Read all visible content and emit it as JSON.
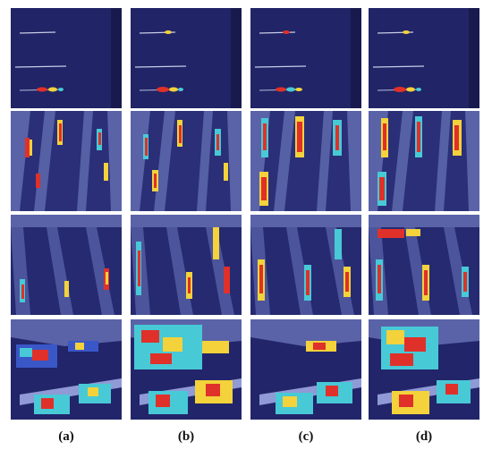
{
  "figure": {
    "column_labels": [
      "(a)",
      "(b)",
      "(c)",
      "(d)"
    ]
  },
  "palette": {
    "sea": "#23256a",
    "sea_dark": "#171a50",
    "land": "#5a63a8",
    "dock": "#8f9ad6",
    "heat_red": "#e0302a",
    "heat_yellow": "#f3d23b",
    "heat_cyan": "#48c9d6",
    "heat_blue": "#3a57c8"
  }
}
